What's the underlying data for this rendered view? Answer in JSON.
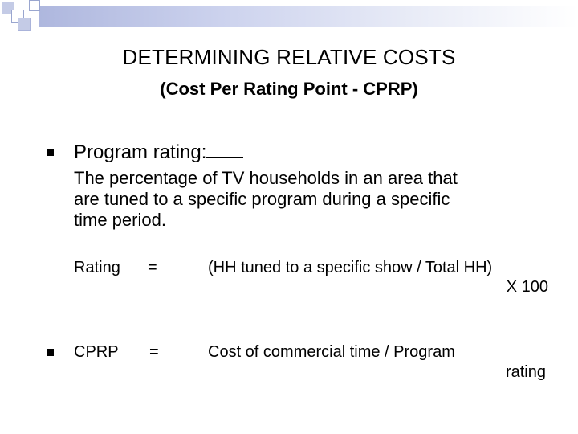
{
  "slide": {
    "title": "DETERMINING RELATIVE COSTS",
    "subtitle": "(Cost Per Rating Point - CPRP)",
    "bullet1": {
      "heading": "Program rating:",
      "definition_lines": [
        "The percentage of TV households in an area that",
        "are tuned to a specific program during a specific",
        "time period."
      ]
    },
    "formula_rating": {
      "term": "Rating",
      "equals": "=",
      "expr_line1": "(HH tuned to a specific show / Total HH)",
      "expr_line2": "X 100"
    },
    "formula_cprp": {
      "term": "CPRP",
      "equals": "=",
      "expr_line1": "Cost of commercial time / Program",
      "expr_line2": "rating"
    }
  },
  "colors": {
    "decoration_dark": "#aab3da",
    "decoration_light": "#e9ecf7",
    "text": "#000000"
  }
}
